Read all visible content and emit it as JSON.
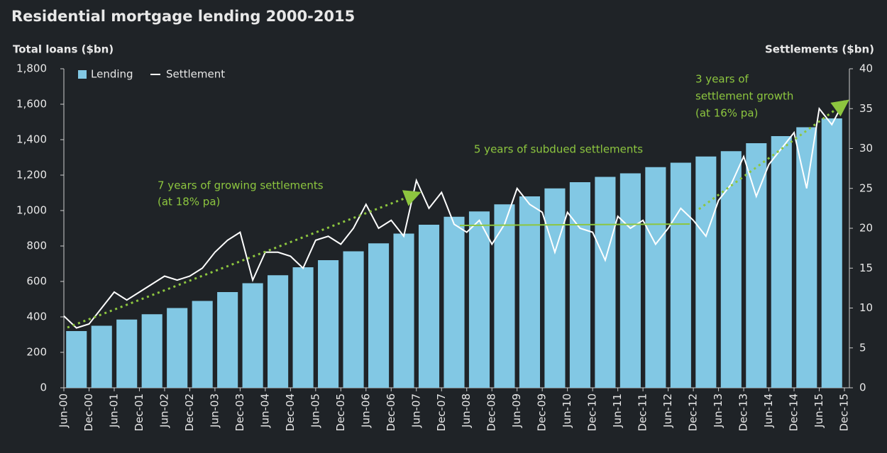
{
  "chart_data": {
    "type": "bar-line",
    "title": "Residential mortgage lending 2000-2015",
    "y_label": "Total loans ($bn)",
    "y2_label": "Settlements ($bn)",
    "annotations": [
      "7 years of growing settlements",
      "(at 18% pa)",
      "5 years of subdued settlements",
      "3 years of",
      "settlement growth",
      "(at 16% pa)"
    ],
    "categories": [
      "Jun-00",
      null,
      "Dec-00",
      null,
      "Jun-01",
      null,
      "Dec-01",
      null,
      "Jun-02",
      null,
      "Dec-02",
      null,
      "Jun-03",
      null,
      "Dec-03",
      null,
      "Jun-04",
      null,
      "Dec-04",
      null,
      "Jun-05",
      null,
      "Dec-05",
      null,
      "Jun-06",
      null,
      "Dec-06",
      null,
      "Jun-07",
      null,
      "Dec-07",
      null,
      "Jun-08",
      null,
      "Dec-08",
      null,
      "Jun-09",
      null,
      "Dec-09",
      null,
      "Jun-10",
      null,
      "Dec-10",
      null,
      "Jun-11",
      null,
      "Dec-11",
      null,
      "Jun-12",
      null,
      "Dec-12",
      null,
      "Jun-13",
      null,
      "Dec-13",
      null,
      "Jun-14",
      null,
      "Dec-14",
      null,
      "Jun-15",
      null,
      "Dec-15"
    ],
    "series": [
      {
        "name": "Lending",
        "type": "bar",
        "color": "#82c8e4",
        "values": [
          null,
          320,
          null,
          350,
          null,
          385,
          null,
          415,
          null,
          450,
          null,
          490,
          null,
          540,
          null,
          590,
          null,
          635,
          null,
          680,
          null,
          720,
          null,
          770,
          null,
          815,
          null,
          870,
          null,
          920,
          null,
          965,
          null,
          995,
          null,
          1035,
          null,
          1080,
          null,
          1125,
          null,
          1160,
          null,
          1190,
          null,
          1210,
          null,
          1245,
          null,
          1270,
          null,
          1305,
          null,
          1335,
          null,
          1380,
          null,
          1420,
          null,
          1470,
          null,
          1520,
          null
        ]
      },
      {
        "name": "Settlement",
        "type": "line",
        "axis": "y2",
        "color": "#ffffff",
        "values": [
          9,
          7.5,
          8,
          10,
          12,
          11,
          12,
          13,
          14,
          13.5,
          14,
          15,
          17,
          18.5,
          19.5,
          13.5,
          17,
          17,
          16.5,
          15,
          18.5,
          19,
          18,
          20,
          23,
          20,
          21,
          19,
          26,
          22.5,
          24.5,
          20.5,
          19.5,
          21,
          18,
          20.5,
          25,
          23,
          22,
          17,
          22,
          20,
          19.5,
          16,
          21.5,
          20,
          21,
          18,
          20,
          22.5,
          21,
          19,
          23.5,
          25.5,
          29,
          24,
          28,
          30,
          32,
          25,
          35,
          33,
          36
        ]
      }
    ],
    "ylim": [
      0,
      1800
    ],
    "yticks": [
      0,
      200,
      400,
      600,
      800,
      {
        "value": 1000,
        "label": "1,000"
      },
      {
        "value": 1200,
        "label": "1,200"
      },
      {
        "value": 1400,
        "label": "1,400"
      },
      {
        "value": 1600,
        "label": "1,600"
      },
      {
        "value": 1800,
        "label": "1,800"
      }
    ],
    "y2lim": [
      0,
      40
    ],
    "y2ticks": [
      0,
      5,
      10,
      15,
      20,
      25,
      30,
      35,
      40
    ],
    "legend": "top-left"
  }
}
